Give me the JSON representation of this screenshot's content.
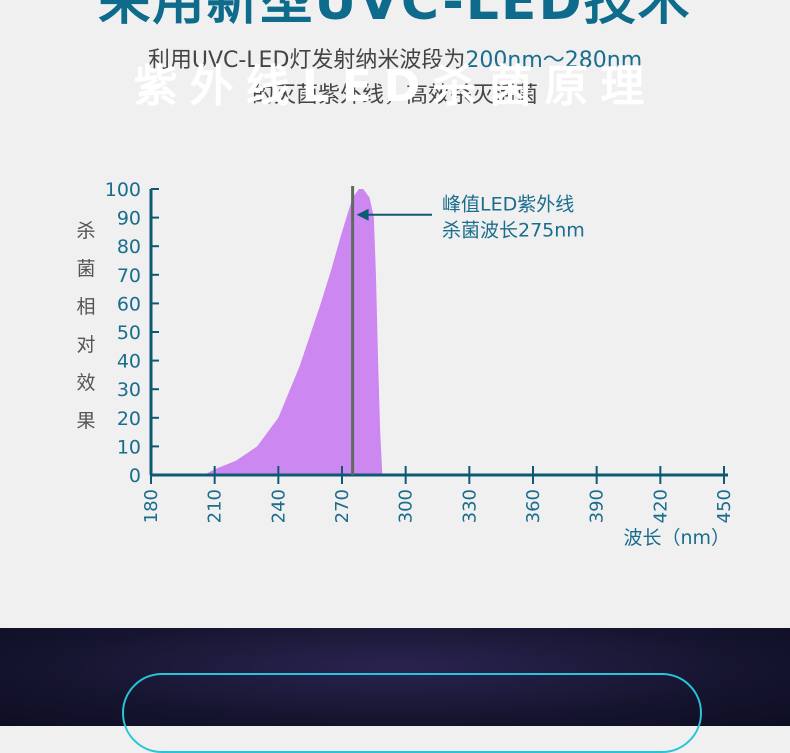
{
  "header": {
    "title": "采用新型UVC-LED技术",
    "subtitle_line1_a": "利用UVC-LED灯发射纳米波段为",
    "subtitle_line1_b": "200nm～280nm",
    "subtitle_line2": "的灭菌紫外线，高效杀灭活菌"
  },
  "chart_data": {
    "type": "area",
    "ylabel": "杀菌相对效果",
    "xlabel": "波长（nm）",
    "x_ticks": [
      180,
      210,
      240,
      270,
      300,
      330,
      360,
      390,
      420,
      450
    ],
    "y_ticks": [
      0,
      10,
      20,
      30,
      40,
      50,
      60,
      70,
      80,
      90,
      100
    ],
    "xlim": [
      180,
      450
    ],
    "ylim": [
      0,
      100
    ],
    "series": [
      {
        "x": [
          205,
          210,
          220,
          230,
          240,
          250,
          260,
          265,
          270,
          275,
          278,
          280,
          283,
          285,
          286,
          287,
          288,
          289
        ],
        "y": [
          0,
          2,
          5,
          10,
          20,
          38,
          60,
          72,
          85,
          97,
          100,
          100,
          97,
          90,
          70,
          40,
          15,
          0
        ],
        "color": "#cc88f0"
      }
    ],
    "peak_line_x": 275,
    "annotation": {
      "line1": "峰值LED紫外线",
      "line2": "杀菌波长275nm",
      "target_x": 275,
      "target_y": 91
    },
    "axis_color": "#0e5a73",
    "tick_label_color": "#1a6d8d"
  },
  "footer": {
    "title": "紫外线LED杀菌原理",
    "border_color": "#26c6da"
  }
}
